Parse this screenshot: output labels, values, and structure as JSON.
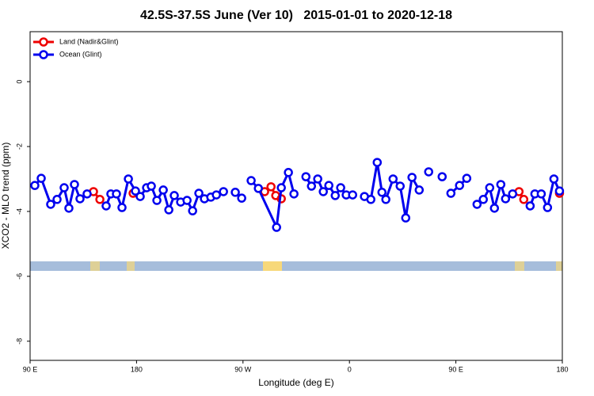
{
  "chart_data": {
    "type": "line",
    "title": "42.5S-37.5S June (Ver 10)   2015-01-01 to 2020-12-18",
    "xlabel": "Longitude (deg E)",
    "ylabel": "XCO2 - MLO trend (ppm)",
    "xlim": [
      90,
      540
    ],
    "xticks": [
      {
        "value": 90,
        "label": "90 E"
      },
      180,
      {
        "value": 270,
        "label": "90 W"
      },
      {
        "value": 360,
        "label": "0"
      },
      {
        "value": 450,
        "label": "90 E"
      },
      {
        "value": 540,
        "label": "180"
      }
    ],
    "ylim": [
      -8.59,
      1.54
    ],
    "yticks": [
      0,
      -2,
      -4,
      -6,
      -8
    ],
    "legend": "top-left",
    "series": [
      {
        "name": "Land (Nadir&Glint)",
        "color": "#ee0000",
        "x": [
          143.6,
          149.0,
          null,
          177.1,
          null,
          288.3,
          293.7,
          297.7,
          302.4,
          null,
          503.4,
          507.4,
          null,
          537.6
        ],
        "values": [
          -3.39,
          -3.63,
          null,
          -3.44,
          null,
          -3.39,
          -3.24,
          -3.51,
          -3.61,
          null,
          -3.39,
          -3.63,
          null,
          -3.44
        ]
      },
      {
        "name": "Ocean (Glint)",
        "color": "#0000ee",
        "x": [
          94.0,
          99.4,
          107.4,
          112.8,
          118.8,
          122.8,
          127.5,
          132.2,
          138.2,
          null,
          154.3,
          158.3,
          163.0,
          167.7,
          173.1,
          179.1,
          183.1,
          188.5,
          192.5,
          197.2,
          202.6,
          207.3,
          211.9,
          217.3,
          222.7,
          227.4,
          232.7,
          237.4,
          242.8,
          247.5,
          253.5,
          null,
          263.5,
          268.9,
          null,
          276.9,
          283.0,
          298.4,
          302.4,
          308.4,
          313.1,
          null,
          323.2,
          327.9,
          333.2,
          337.9,
          342.6,
          348.0,
          352.6,
          357.3,
          362.7,
          null,
          372.7,
          378.1,
          383.5,
          387.5,
          390.8,
          396.9,
          402.9,
          407.6,
          412.9,
          419.0,
          null,
          427.0,
          null,
          438.4,
          null,
          445.8,
          453.1,
          459.2,
          null,
          467.9,
          473.2,
          478.6,
          482.6,
          488.0,
          492.0,
          498.0,
          null,
          512.8,
          516.8,
          522.2,
          527.5,
          532.9,
          537.6
        ],
        "values": [
          -3.2,
          -2.98,
          -3.78,
          -3.63,
          -3.27,
          -3.9,
          -3.17,
          -3.61,
          -3.46,
          null,
          -3.83,
          -3.46,
          -3.46,
          -3.88,
          -3.0,
          -3.37,
          -3.54,
          -3.27,
          -3.22,
          -3.66,
          -3.34,
          -3.95,
          -3.51,
          -3.71,
          -3.66,
          -3.98,
          -3.44,
          -3.61,
          -3.56,
          -3.49,
          -3.39,
          null,
          -3.41,
          -3.59,
          null,
          -3.05,
          -3.29,
          -4.49,
          -3.27,
          -2.8,
          -3.46,
          null,
          -2.93,
          -3.22,
          -3.0,
          -3.39,
          -3.2,
          -3.51,
          -3.27,
          -3.49,
          -3.49,
          null,
          -3.54,
          -3.63,
          -2.49,
          -3.41,
          -3.63,
          -3.0,
          -3.22,
          -4.2,
          -2.95,
          -3.34,
          null,
          -2.78,
          null,
          -2.93,
          null,
          -3.44,
          -3.2,
          -2.98,
          null,
          -3.78,
          -3.63,
          -3.27,
          -3.9,
          -3.17,
          -3.61,
          -3.46,
          null,
          -3.83,
          -3.46,
          -3.46,
          -3.88,
          -3.0,
          -3.37
        ]
      }
    ]
  }
}
